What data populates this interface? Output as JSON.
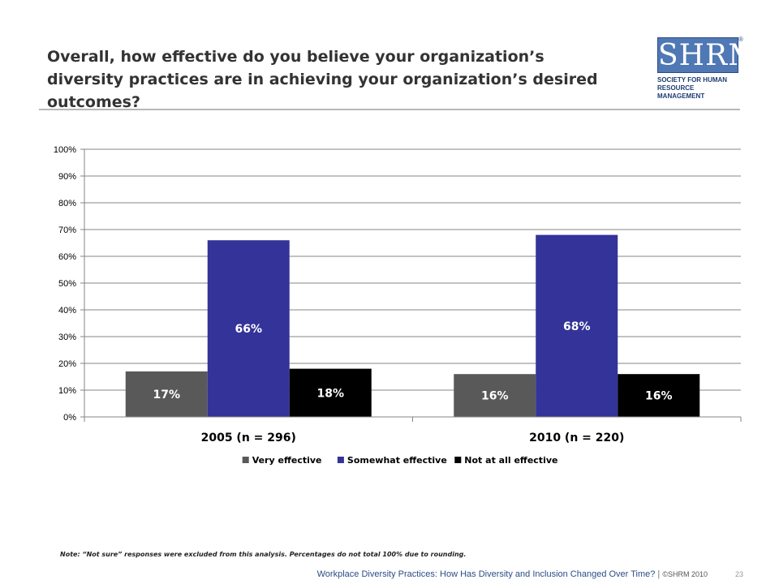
{
  "slide": {
    "title": "Overall, how effective do you believe your organization’s diversity practices are in achieving your organization’s desired outcomes?",
    "note": "Note: “Not sure” responses were excluded from this analysis. Percentages do not total 100% due to rounding.",
    "footer_text": "Workplace Diversity Practices: How Has Diversity and Inclusion Changed Over Time?",
    "footer_separator": "|",
    "footer_copyright": "©SHRM 2010",
    "page_number": "23"
  },
  "logo": {
    "letters": "SHRM",
    "registered": "®",
    "tagline_line1": "Society for Human",
    "tagline_line2": "Resource Management"
  },
  "chart_data": {
    "type": "bar",
    "categories": [
      "2005 (n = 296)",
      "2010 (n = 220)"
    ],
    "series": [
      {
        "name": "Very effective",
        "values": [
          17,
          16
        ],
        "labels": [
          "17%",
          "16%"
        ],
        "color": "#595959",
        "label_color": "#ffffff"
      },
      {
        "name": "Somewhat effective",
        "values": [
          66,
          68
        ],
        "labels": [
          "66%",
          "68%"
        ],
        "color": "#333399",
        "label_color": "#ffffff"
      },
      {
        "name": "Not at all effective",
        "values": [
          18,
          16
        ],
        "labels": [
          "18%",
          "16%"
        ],
        "color": "#000000",
        "label_color": "#ffffff"
      }
    ],
    "ylim": [
      0,
      100
    ],
    "yticks": [
      "0%",
      "10%",
      "20%",
      "30%",
      "40%",
      "50%",
      "60%",
      "70%",
      "80%",
      "90%",
      "100%"
    ],
    "grid": true,
    "legend_position": "bottom",
    "title": "",
    "xlabel": "",
    "ylabel": ""
  }
}
